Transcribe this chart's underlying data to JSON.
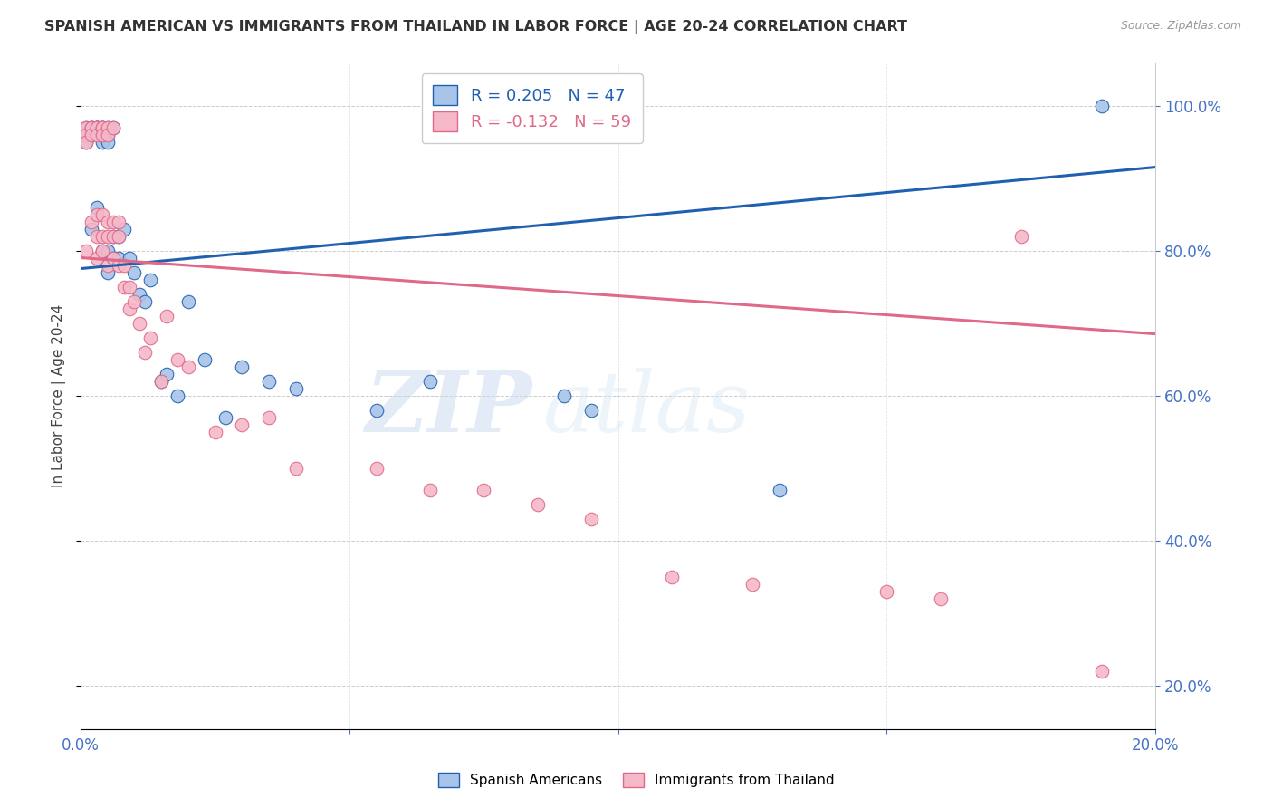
{
  "title": "SPANISH AMERICAN VS IMMIGRANTS FROM THAILAND IN LABOR FORCE | AGE 20-24 CORRELATION CHART",
  "source": "Source: ZipAtlas.com",
  "ylabel": "In Labor Force | Age 20-24",
  "xlim": [
    0.0,
    0.2
  ],
  "ylim": [
    0.14,
    1.06
  ],
  "right_yticks": [
    0.2,
    0.4,
    0.6,
    0.8,
    1.0
  ],
  "xticks": [
    0.0,
    0.05,
    0.1,
    0.15,
    0.2
  ],
  "xtick_labels": [
    "0.0%",
    "",
    "",
    "",
    "20.0%"
  ],
  "blue_color": "#a8c4e8",
  "pink_color": "#f4b8c8",
  "blue_line_color": "#2060b0",
  "pink_line_color": "#e06888",
  "legend_r_blue": "R = 0.205",
  "legend_n_blue": "N = 47",
  "legend_r_pink": "R = -0.132",
  "legend_n_pink": "N = 59",
  "watermark_zip": "ZIP",
  "watermark_atlas": "atlas",
  "blue_scatter_x": [
    0.001,
    0.001,
    0.001,
    0.002,
    0.002,
    0.002,
    0.002,
    0.003,
    0.003,
    0.003,
    0.003,
    0.004,
    0.004,
    0.004,
    0.004,
    0.004,
    0.005,
    0.005,
    0.005,
    0.005,
    0.005,
    0.006,
    0.006,
    0.006,
    0.007,
    0.007,
    0.008,
    0.009,
    0.01,
    0.011,
    0.012,
    0.013,
    0.015,
    0.016,
    0.018,
    0.02,
    0.023,
    0.027,
    0.03,
    0.035,
    0.04,
    0.055,
    0.065,
    0.09,
    0.095,
    0.13,
    0.19
  ],
  "blue_scatter_y": [
    0.97,
    0.95,
    0.96,
    0.97,
    0.96,
    0.97,
    0.83,
    0.97,
    0.97,
    0.97,
    0.86,
    0.97,
    0.97,
    0.96,
    0.95,
    0.8,
    0.97,
    0.96,
    0.95,
    0.8,
    0.77,
    0.97,
    0.82,
    0.79,
    0.82,
    0.79,
    0.83,
    0.79,
    0.77,
    0.74,
    0.73,
    0.76,
    0.62,
    0.63,
    0.6,
    0.73,
    0.65,
    0.57,
    0.64,
    0.62,
    0.61,
    0.58,
    0.62,
    0.6,
    0.58,
    0.47,
    1.0
  ],
  "pink_scatter_x": [
    0.001,
    0.001,
    0.001,
    0.001,
    0.002,
    0.002,
    0.002,
    0.002,
    0.003,
    0.003,
    0.003,
    0.003,
    0.003,
    0.003,
    0.004,
    0.004,
    0.004,
    0.004,
    0.004,
    0.004,
    0.005,
    0.005,
    0.005,
    0.005,
    0.005,
    0.006,
    0.006,
    0.006,
    0.006,
    0.007,
    0.007,
    0.007,
    0.008,
    0.008,
    0.009,
    0.009,
    0.01,
    0.011,
    0.012,
    0.013,
    0.015,
    0.016,
    0.018,
    0.02,
    0.025,
    0.03,
    0.035,
    0.04,
    0.055,
    0.065,
    0.075,
    0.085,
    0.095,
    0.11,
    0.125,
    0.15,
    0.16,
    0.175,
    0.19
  ],
  "pink_scatter_y": [
    0.97,
    0.96,
    0.95,
    0.8,
    0.97,
    0.97,
    0.96,
    0.84,
    0.97,
    0.97,
    0.96,
    0.85,
    0.82,
    0.79,
    0.97,
    0.97,
    0.96,
    0.85,
    0.82,
    0.8,
    0.97,
    0.96,
    0.84,
    0.82,
    0.78,
    0.97,
    0.84,
    0.82,
    0.79,
    0.84,
    0.82,
    0.78,
    0.78,
    0.75,
    0.75,
    0.72,
    0.73,
    0.7,
    0.66,
    0.68,
    0.62,
    0.71,
    0.65,
    0.64,
    0.55,
    0.56,
    0.57,
    0.5,
    0.5,
    0.47,
    0.47,
    0.45,
    0.43,
    0.35,
    0.34,
    0.33,
    0.32,
    0.82,
    0.22
  ],
  "blue_line_x0": 0.0,
  "blue_line_x1": 0.2,
  "blue_line_y0": 0.775,
  "blue_line_y1": 0.915,
  "pink_line_x0": 0.0,
  "pink_line_x1": 0.2,
  "pink_line_y0": 0.79,
  "pink_line_y1": 0.685
}
